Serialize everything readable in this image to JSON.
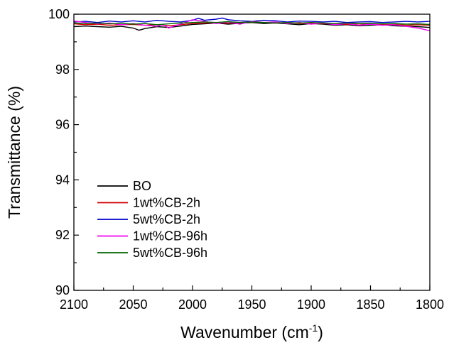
{
  "chart_data": {
    "type": "line",
    "xlabel_main": "Wavenumber (cm",
    "xlabel_sup": "-1",
    "xlabel_close": ")",
    "ylabel": "Transmittance (%)",
    "xlim": [
      2100,
      1800
    ],
    "ylim": [
      90,
      100
    ],
    "x_ticks": [
      2100,
      2050,
      2000,
      1950,
      1900,
      1850,
      1800
    ],
    "y_ticks": [
      90,
      92,
      94,
      96,
      98,
      100
    ],
    "legend_position": "lower-left",
    "series": [
      {
        "name": "BO",
        "color": "#000000",
        "x": [
          2100,
          2090,
          2080,
          2070,
          2060,
          2050,
          2045,
          2040,
          2030,
          2020,
          2010,
          2000,
          1990,
          1980,
          1970,
          1960,
          1950,
          1940,
          1930,
          1920,
          1910,
          1900,
          1890,
          1880,
          1870,
          1860,
          1850,
          1840,
          1830,
          1820,
          1810,
          1800
        ],
        "y": [
          99.55,
          99.57,
          99.55,
          99.53,
          99.56,
          99.5,
          99.42,
          99.48,
          99.55,
          99.52,
          99.57,
          99.63,
          99.65,
          99.68,
          99.64,
          99.67,
          99.7,
          99.66,
          99.68,
          99.65,
          99.62,
          99.66,
          99.64,
          99.6,
          99.62,
          99.58,
          99.6,
          99.62,
          99.58,
          99.56,
          99.55,
          99.52
        ]
      },
      {
        "name": "1wt%CB-2h",
        "color": "#d40000",
        "x": [
          2100,
          2090,
          2080,
          2070,
          2060,
          2050,
          2040,
          2030,
          2020,
          2010,
          2000,
          1990,
          1980,
          1970,
          1960,
          1950,
          1940,
          1930,
          1920,
          1910,
          1900,
          1890,
          1880,
          1870,
          1860,
          1850,
          1840,
          1830,
          1820,
          1810,
          1800
        ],
        "y": [
          99.65,
          99.62,
          99.64,
          99.6,
          99.62,
          99.63,
          99.6,
          99.62,
          99.58,
          99.62,
          99.66,
          99.68,
          99.7,
          99.67,
          99.7,
          99.72,
          99.7,
          99.68,
          99.7,
          99.66,
          99.67,
          99.65,
          99.66,
          99.63,
          99.65,
          99.64,
          99.62,
          99.63,
          99.6,
          99.62,
          99.6
        ]
      },
      {
        "name": "5wt%CB-2h",
        "color": "#0000cc",
        "x": [
          2100,
          2090,
          2080,
          2070,
          2060,
          2050,
          2040,
          2030,
          2020,
          2010,
          2000,
          1995,
          1990,
          1980,
          1975,
          1970,
          1960,
          1950,
          1940,
          1930,
          1920,
          1910,
          1900,
          1890,
          1880,
          1870,
          1860,
          1850,
          1840,
          1830,
          1820,
          1810,
          1800
        ],
        "y": [
          99.72,
          99.74,
          99.7,
          99.75,
          99.72,
          99.76,
          99.72,
          99.78,
          99.74,
          99.72,
          99.78,
          99.85,
          99.78,
          99.82,
          99.86,
          99.8,
          99.76,
          99.74,
          99.78,
          99.76,
          99.72,
          99.75,
          99.74,
          99.72,
          99.74,
          99.7,
          99.72,
          99.73,
          99.7,
          99.72,
          99.74,
          99.72,
          99.74
        ]
      },
      {
        "name": "1wt%CB-96h",
        "color": "#ee00ee",
        "x": [
          2100,
          2090,
          2080,
          2070,
          2060,
          2050,
          2040,
          2030,
          2025,
          2020,
          2015,
          2010,
          2005,
          2000,
          1990,
          1980,
          1970,
          1960,
          1950,
          1940,
          1930,
          1920,
          1910,
          1900,
          1890,
          1880,
          1870,
          1860,
          1850,
          1840,
          1830,
          1820,
          1810,
          1800
        ],
        "y": [
          99.75,
          99.7,
          99.65,
          99.68,
          99.62,
          99.66,
          99.6,
          99.56,
          99.62,
          99.5,
          99.58,
          99.64,
          99.72,
          99.8,
          99.74,
          99.66,
          99.72,
          99.64,
          99.74,
          99.7,
          99.72,
          99.66,
          99.7,
          99.64,
          99.68,
          99.62,
          99.66,
          99.6,
          99.64,
          99.6,
          99.62,
          99.56,
          99.5,
          99.4
        ]
      },
      {
        "name": "5wt%CB-96h",
        "color": "#006600",
        "x": [
          2100,
          2090,
          2080,
          2070,
          2060,
          2050,
          2040,
          2030,
          2020,
          2010,
          2000,
          1990,
          1980,
          1970,
          1960,
          1950,
          1940,
          1930,
          1920,
          1910,
          1900,
          1890,
          1880,
          1870,
          1860,
          1850,
          1840,
          1830,
          1820,
          1810,
          1800
        ],
        "y": [
          99.68,
          99.66,
          99.68,
          99.65,
          99.67,
          99.64,
          99.66,
          99.62,
          99.65,
          99.68,
          99.7,
          99.72,
          99.7,
          99.73,
          99.7,
          99.72,
          99.7,
          99.68,
          99.7,
          99.68,
          99.7,
          99.68,
          99.66,
          99.68,
          99.66,
          99.67,
          99.65,
          99.66,
          99.64,
          99.65,
          99.63
        ]
      }
    ]
  }
}
